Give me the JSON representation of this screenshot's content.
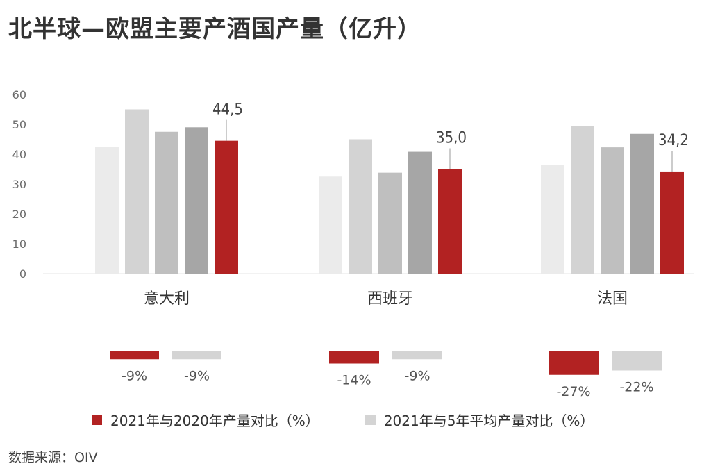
{
  "title": "北半球—欧盟主要产酒国产量（亿升）",
  "source": "数据来源：OIV",
  "colors": {
    "highlight": "#b22222",
    "shades": [
      "#ebebeb",
      "#d3d3d3",
      "#bfbfbf",
      "#a6a6a6"
    ],
    "comparison_gray": "#d4d4d4",
    "axis_text": "#6b6b6b"
  },
  "legend": {
    "yoy_label": "2021年与2020年产量对比（%）",
    "avg5_label": "2021年与5年平均产量对比（%）"
  },
  "chart_data": {
    "type": "bar",
    "title": "北半球—欧盟主要产酒国产量（亿升）",
    "categories": [
      "意大利",
      "西班牙",
      "法国"
    ],
    "bars_per_group": 5,
    "values": [
      [
        42.5,
        55.0,
        47.5,
        49.0,
        44.5
      ],
      [
        32.5,
        45.0,
        33.8,
        40.8,
        35.0
      ],
      [
        36.5,
        49.3,
        42.3,
        46.8,
        34.2
      ]
    ],
    "value_labels": [
      "44,5",
      "35,0",
      "34,2"
    ],
    "ylim": [
      0,
      60
    ],
    "yticks": [
      "0",
      "10",
      "20",
      "30",
      "40",
      "50",
      "60"
    ],
    "grid": false,
    "comparisons": [
      {
        "category": "意大利",
        "yoy": -9,
        "avg5": -9,
        "yoy_label": "-9%",
        "avg5_label": "-9%"
      },
      {
        "category": "西班牙",
        "yoy": -14,
        "avg5": -9,
        "yoy_label": "-14%",
        "avg5_label": "-9%"
      },
      {
        "category": "法国",
        "yoy": -27,
        "avg5": -22,
        "yoy_label": "-27%",
        "avg5_label": "-22%"
      }
    ]
  }
}
